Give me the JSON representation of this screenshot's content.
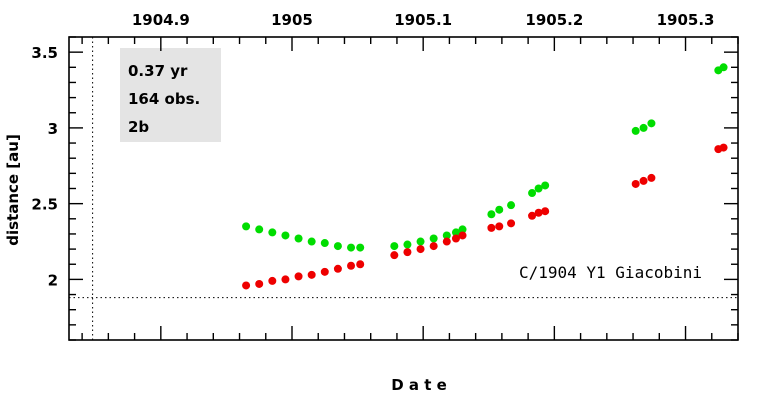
{
  "chart_data": {
    "type": "scatter",
    "title": "",
    "xlabel": "D a t e",
    "ylabel": "distance [au]",
    "xlim": [
      1904.83,
      1905.34
    ],
    "ylim": [
      1.6,
      3.6
    ],
    "x_ticks": [
      "1904.9",
      "1905",
      "1905.1",
      "1905.2",
      "1905.3"
    ],
    "x_tick_values": [
      1904.9,
      1905.0,
      1905.1,
      1905.2,
      1905.3
    ],
    "y_ticks": [
      "2",
      "2.5",
      "3",
      "3.5"
    ],
    "y_tick_values": [
      2.0,
      2.5,
      3.0,
      3.5
    ],
    "info_box": [
      "0.37 yr",
      "164 obs.",
      "2b"
    ],
    "annotation": "C/1904 Y1 Giacobini",
    "reference_lines": {
      "horizontal_y": 1.88,
      "vertical_x": 1904.848
    },
    "grid": false,
    "series": [
      {
        "color": "#00dd00",
        "points": [
          [
            1904.965,
            2.35
          ],
          [
            1904.975,
            2.33
          ],
          [
            1904.985,
            2.31
          ],
          [
            1904.995,
            2.29
          ],
          [
            1905.005,
            2.27
          ],
          [
            1905.015,
            2.25
          ],
          [
            1905.025,
            2.24
          ],
          [
            1905.035,
            2.22
          ],
          [
            1905.045,
            2.21
          ],
          [
            1905.052,
            2.21
          ],
          [
            1905.078,
            2.22
          ],
          [
            1905.088,
            2.23
          ],
          [
            1905.098,
            2.25
          ],
          [
            1905.108,
            2.27
          ],
          [
            1905.118,
            2.29
          ],
          [
            1905.125,
            2.31
          ],
          [
            1905.13,
            2.33
          ],
          [
            1905.152,
            2.43
          ],
          [
            1905.158,
            2.46
          ],
          [
            1905.167,
            2.49
          ],
          [
            1905.183,
            2.57
          ],
          [
            1905.188,
            2.6
          ],
          [
            1905.193,
            2.62
          ],
          [
            1905.262,
            2.98
          ],
          [
            1905.268,
            3.0
          ],
          [
            1905.274,
            3.03
          ],
          [
            1905.325,
            3.38
          ],
          [
            1905.329,
            3.4
          ]
        ]
      },
      {
        "color": "#ee0000",
        "points": [
          [
            1904.965,
            1.96
          ],
          [
            1904.975,
            1.97
          ],
          [
            1904.985,
            1.99
          ],
          [
            1904.995,
            2.0
          ],
          [
            1905.005,
            2.02
          ],
          [
            1905.015,
            2.03
          ],
          [
            1905.025,
            2.05
          ],
          [
            1905.035,
            2.07
          ],
          [
            1905.045,
            2.09
          ],
          [
            1905.052,
            2.1
          ],
          [
            1905.078,
            2.16
          ],
          [
            1905.088,
            2.18
          ],
          [
            1905.098,
            2.2
          ],
          [
            1905.108,
            2.22
          ],
          [
            1905.118,
            2.25
          ],
          [
            1905.125,
            2.27
          ],
          [
            1905.13,
            2.29
          ],
          [
            1905.152,
            2.34
          ],
          [
            1905.158,
            2.35
          ],
          [
            1905.167,
            2.37
          ],
          [
            1905.183,
            2.42
          ],
          [
            1905.188,
            2.44
          ],
          [
            1905.193,
            2.45
          ],
          [
            1905.262,
            2.63
          ],
          [
            1905.268,
            2.65
          ],
          [
            1905.274,
            2.67
          ],
          [
            1905.325,
            2.86
          ],
          [
            1905.329,
            2.87
          ]
        ]
      }
    ]
  }
}
